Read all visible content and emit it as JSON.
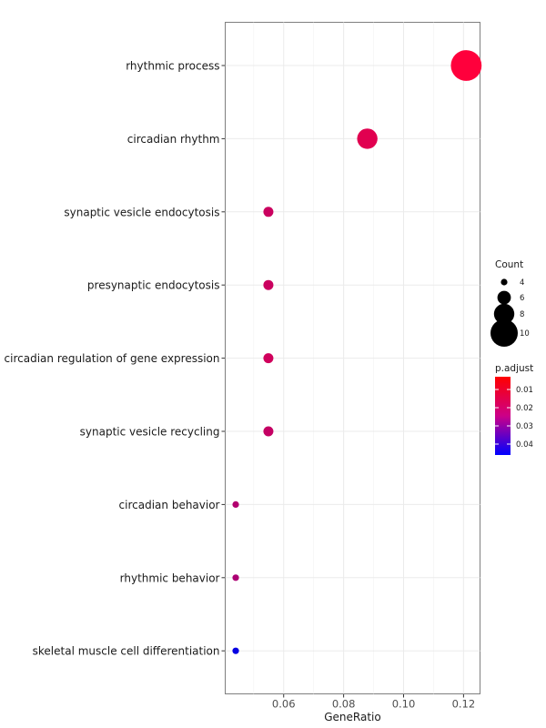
{
  "chart_data": {
    "type": "scatter",
    "title": "",
    "xlabel": "GeneRatio",
    "ylabel": "",
    "xlim": [
      0.0405,
      0.1255
    ],
    "x_ticks": [
      0.06,
      0.08,
      0.1,
      0.12
    ],
    "x_tick_labels": [
      "0.06",
      "0.08",
      "0.10",
      "0.12"
    ],
    "grid": true,
    "categories": [
      "rhythmic process",
      "circadian rhythm",
      "synaptic vesicle endocytosis",
      "presynaptic endocytosis",
      "circadian regulation of gene expression",
      "synaptic vesicle recycling",
      "circadian behavior",
      "rhythmic behavior",
      "skeletal muscle cell differentiation"
    ],
    "gene_ratio": [
      0.1209,
      0.0879,
      0.0549,
      0.0549,
      0.0549,
      0.0549,
      0.044,
      0.044,
      0.044
    ],
    "count": [
      11,
      8,
      5,
      5,
      5,
      5,
      4,
      4,
      4
    ],
    "p_adjust": [
      0.003,
      0.008,
      0.012,
      0.012,
      0.011,
      0.013,
      0.016,
      0.017,
      0.045
    ],
    "size_legend": {
      "title": "Count",
      "values": [
        4,
        6,
        8,
        10
      ],
      "labels": [
        "4",
        "6",
        "8",
        "10"
      ]
    },
    "color_legend": {
      "title": "p.adjust",
      "range": [
        0.003,
        0.046
      ],
      "ticks": [
        0.01,
        0.02,
        0.03,
        0.04
      ],
      "tick_labels": [
        "0.01",
        "0.02",
        "0.03",
        "0.04"
      ],
      "low_color": "#ff0000",
      "high_color": "#0000ff"
    },
    "legend_position": "right"
  }
}
